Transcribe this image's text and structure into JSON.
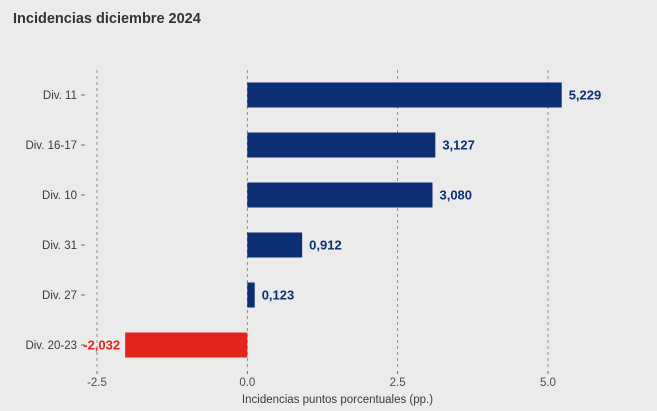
{
  "chart_data": {
    "type": "bar",
    "orientation": "horizontal",
    "title": "Incidencias diciembre 2024",
    "xlabel": "Incidencias puntos porcentuales (pp.)",
    "ylabel": "",
    "categories": [
      "Div. 11",
      "Div. 16-17",
      "Div. 10",
      "Div. 31",
      "Div. 27",
      "Div. 20-23"
    ],
    "values": [
      5.229,
      3.127,
      3.08,
      0.912,
      0.123,
      -2.032
    ],
    "value_labels": [
      "5,229",
      "3,127",
      "3,080",
      "0,912",
      "0,123",
      "-2,032"
    ],
    "xlim": [
      -2.5,
      5.5
    ],
    "xticks": [
      -2.5,
      0.0,
      2.5,
      5.0
    ],
    "xtick_labels": [
      "-2.5",
      "0.0",
      "2.5",
      "5.0"
    ],
    "grid": "vertical dashed",
    "legend": "none",
    "colors": {
      "positive": "#0b2e74",
      "negative": "#e3241b",
      "background": "#ebebeb"
    }
  }
}
